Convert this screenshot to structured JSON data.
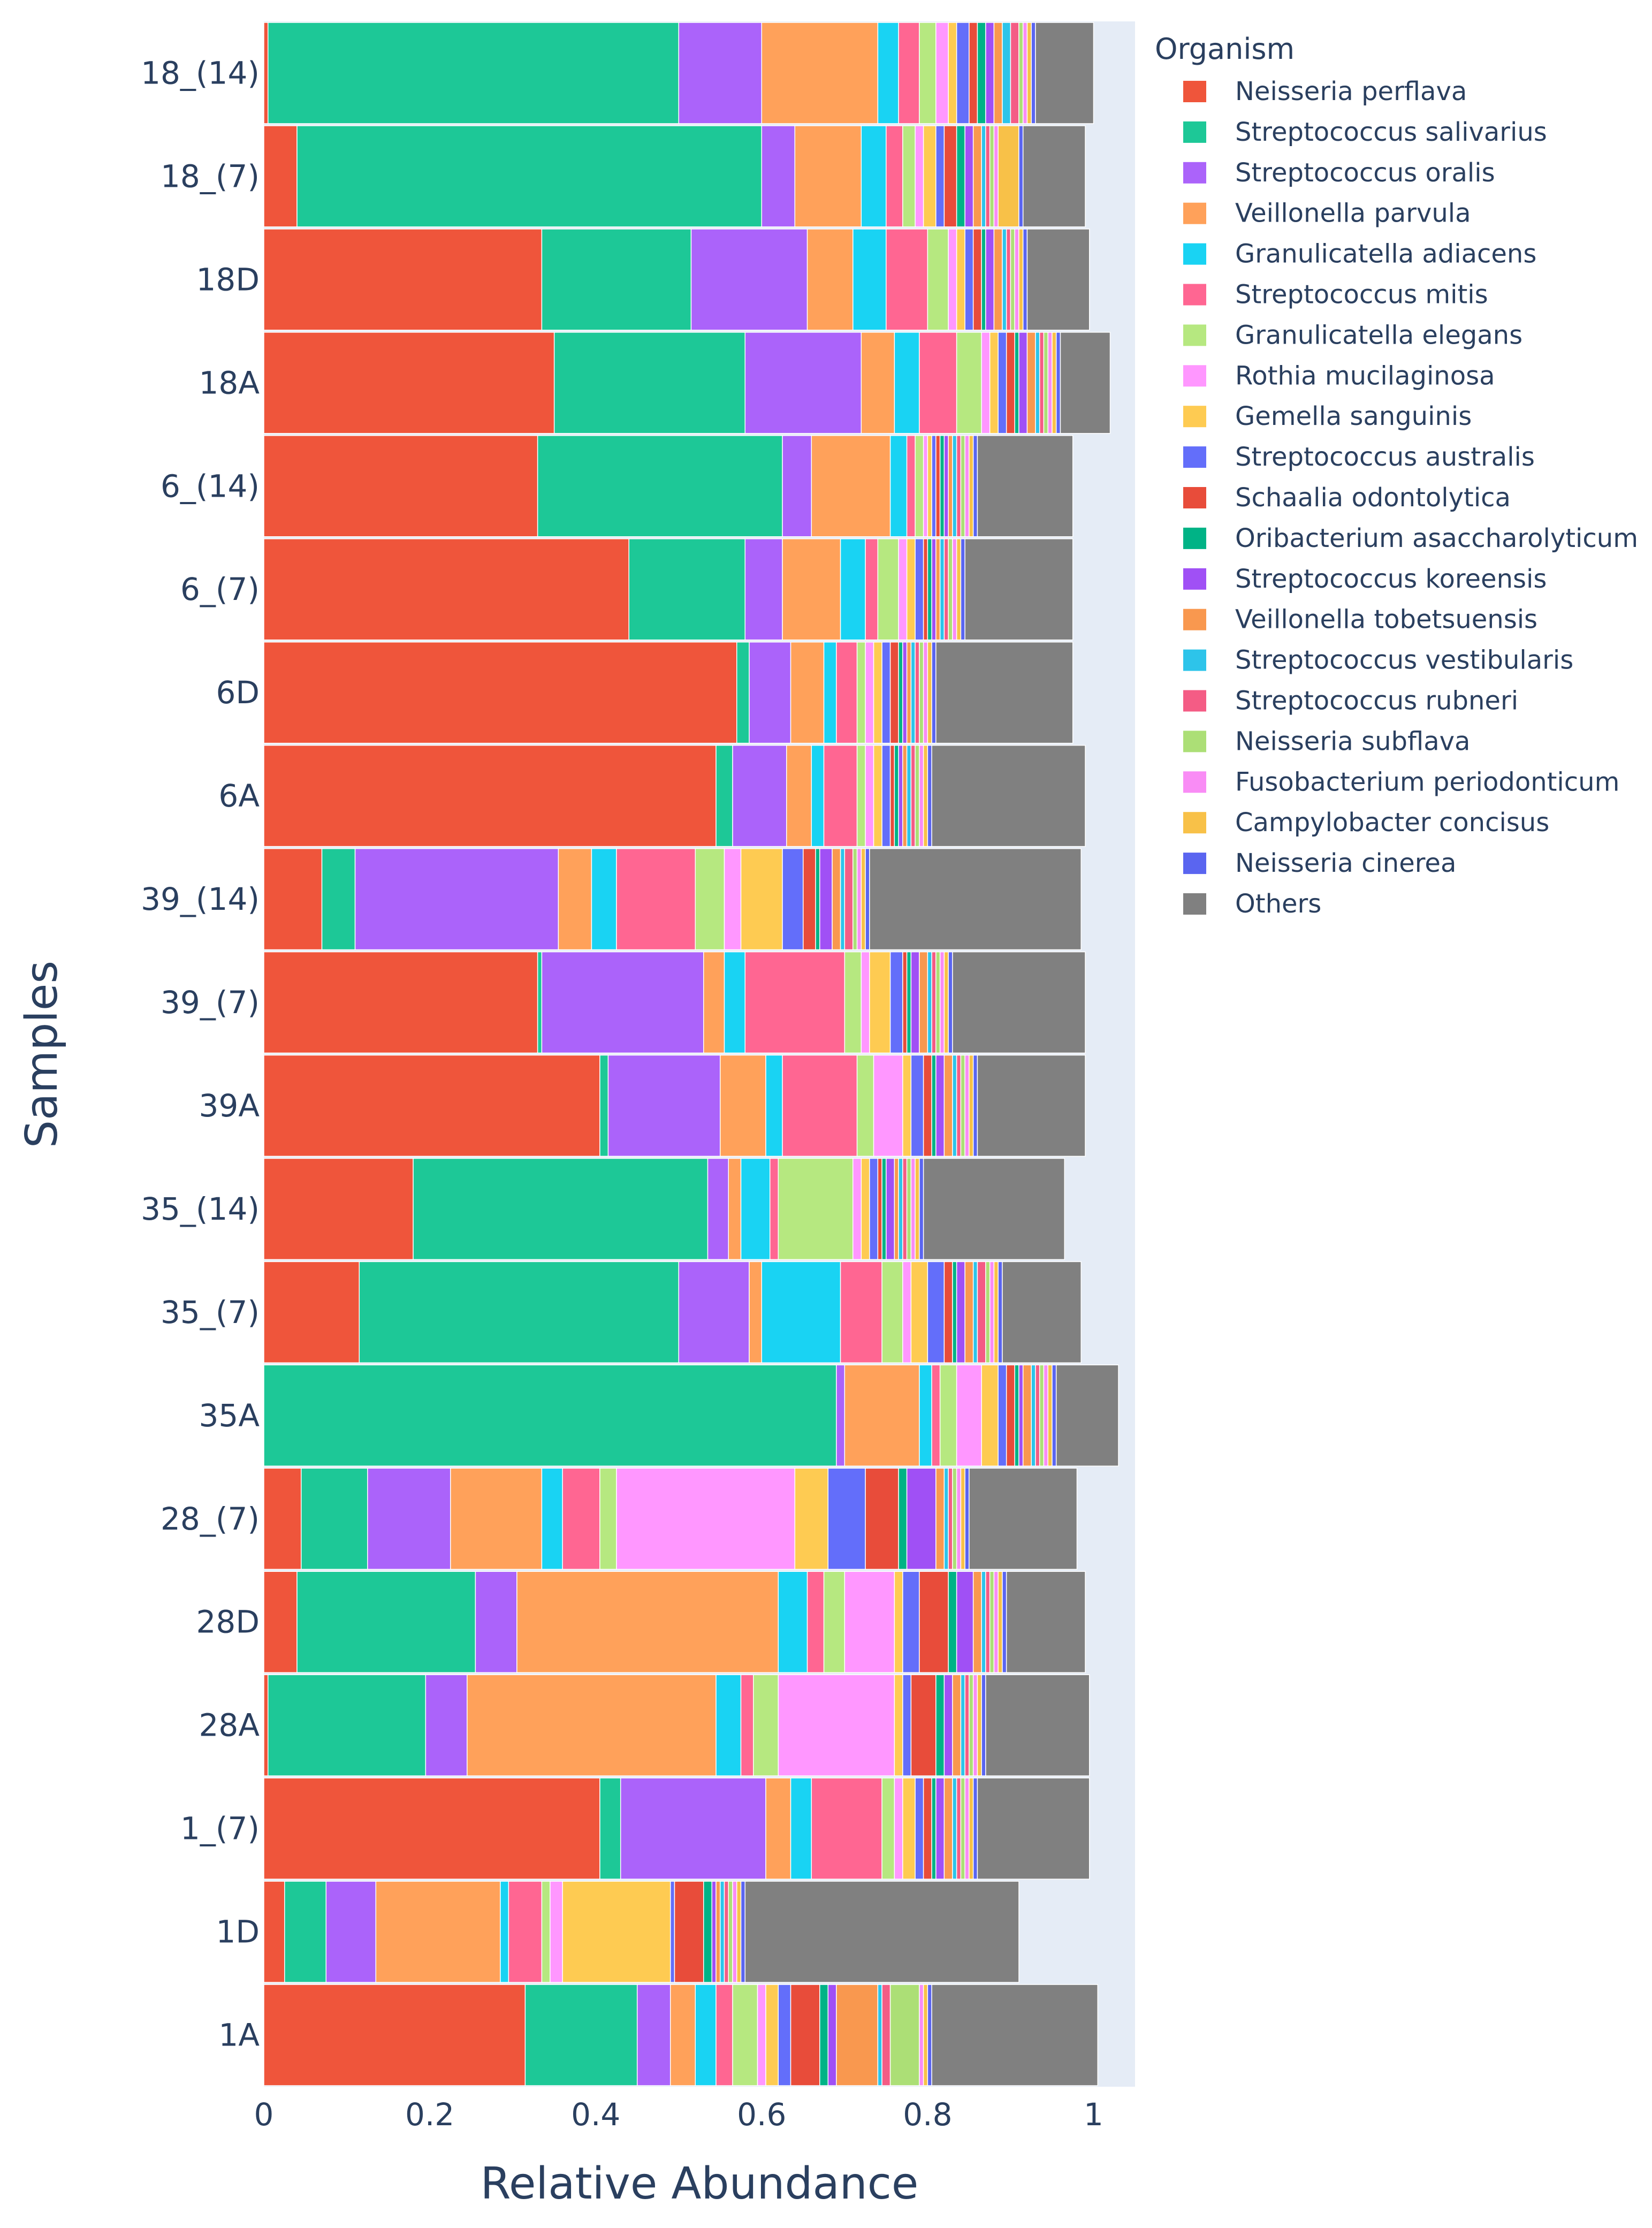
{
  "chart_data": {
    "type": "bar",
    "orientation": "horizontal",
    "barmode": "stack",
    "xlabel": "Relative Abundance",
    "ylabel": "Samples",
    "xlim": [
      0,
      1.05
    ],
    "xticks": [
      0,
      0.2,
      0.4,
      0.6,
      0.8,
      1
    ],
    "xtick_labels": [
      "0",
      "0.2",
      "0.4",
      "0.6",
      "0.8",
      "1"
    ],
    "legend_title": "Organism",
    "legend_position": "top-right",
    "categories": [
      "18_(14)",
      "18_(7)",
      "18D",
      "18A",
      "6_(14)",
      "6_(7)",
      "6D",
      "6A",
      "39_(14)",
      "39_(7)",
      "39A",
      "35_(14)",
      "35_(7)",
      "35A",
      "28_(7)",
      "28D",
      "28A",
      "1_(7)",
      "1D",
      "1A"
    ],
    "series": [
      {
        "name": "Neisseria perflava",
        "color": "#EF553B",
        "values": [
          0.005,
          0.04,
          0.335,
          0.35,
          0.33,
          0.44,
          0.57,
          0.545,
          0.07,
          0.33,
          0.405,
          0.18,
          0.115,
          0.0,
          0.045,
          0.04,
          0.005,
          0.405,
          0.025,
          0.315
        ]
      },
      {
        "name": "Streptococcus salivarius",
        "color": "#1DC897",
        "values": [
          0.495,
          0.56,
          0.18,
          0.23,
          0.295,
          0.14,
          0.015,
          0.02,
          0.04,
          0.005,
          0.01,
          0.355,
          0.385,
          0.69,
          0.08,
          0.215,
          0.19,
          0.025,
          0.05,
          0.135
        ]
      },
      {
        "name": "Streptococcus oralis",
        "color": "#AB63FA",
        "values": [
          0.1,
          0.04,
          0.14,
          0.14,
          0.035,
          0.045,
          0.05,
          0.065,
          0.245,
          0.195,
          0.135,
          0.025,
          0.085,
          0.01,
          0.1,
          0.05,
          0.05,
          0.175,
          0.06,
          0.04
        ]
      },
      {
        "name": "Veillonella parvula",
        "color": "#FFA15A",
        "values": [
          0.14,
          0.08,
          0.055,
          0.04,
          0.095,
          0.07,
          0.04,
          0.03,
          0.04,
          0.025,
          0.055,
          0.015,
          0.015,
          0.09,
          0.11,
          0.315,
          0.3,
          0.03,
          0.15,
          0.03
        ]
      },
      {
        "name": "Granulicatella adiacens",
        "color": "#19D3F3",
        "values": [
          0.025,
          0.03,
          0.04,
          0.03,
          0.02,
          0.03,
          0.015,
          0.015,
          0.03,
          0.025,
          0.02,
          0.035,
          0.095,
          0.015,
          0.025,
          0.035,
          0.03,
          0.025,
          0.01,
          0.025
        ]
      },
      {
        "name": "Streptococcus mitis",
        "color": "#FF6692",
        "values": [
          0.025,
          0.02,
          0.05,
          0.045,
          0.01,
          0.015,
          0.025,
          0.04,
          0.095,
          0.12,
          0.09,
          0.01,
          0.05,
          0.01,
          0.045,
          0.02,
          0.015,
          0.085,
          0.04,
          0.02
        ]
      },
      {
        "name": "Granulicatella elegans",
        "color": "#B6E880",
        "values": [
          0.02,
          0.015,
          0.025,
          0.03,
          0.01,
          0.025,
          0.01,
          0.01,
          0.035,
          0.02,
          0.02,
          0.09,
          0.025,
          0.02,
          0.02,
          0.025,
          0.03,
          0.015,
          0.01,
          0.03
        ]
      },
      {
        "name": "Rothia mucilaginosa",
        "color": "#FF97FF",
        "values": [
          0.015,
          0.01,
          0.01,
          0.01,
          0.005,
          0.01,
          0.01,
          0.01,
          0.02,
          0.01,
          0.035,
          0.01,
          0.01,
          0.03,
          0.215,
          0.06,
          0.14,
          0.01,
          0.015,
          0.01
        ]
      },
      {
        "name": "Gemella sanguinis",
        "color": "#FECB52",
        "values": [
          0.01,
          0.015,
          0.01,
          0.01,
          0.005,
          0.01,
          0.01,
          0.01,
          0.05,
          0.025,
          0.01,
          0.01,
          0.02,
          0.02,
          0.04,
          0.01,
          0.01,
          0.015,
          0.13,
          0.015
        ]
      },
      {
        "name": "Streptococcus australis",
        "color": "#636EFA",
        "values": [
          0.015,
          0.01,
          0.01,
          0.01,
          0.005,
          0.01,
          0.01,
          0.01,
          0.025,
          0.015,
          0.015,
          0.01,
          0.02,
          0.01,
          0.045,
          0.02,
          0.01,
          0.01,
          0.005,
          0.015
        ]
      },
      {
        "name": "Schaalia odontolytica",
        "color": "#E84C3A",
        "values": [
          0.01,
          0.015,
          0.01,
          0.01,
          0.005,
          0.005,
          0.01,
          0.005,
          0.015,
          0.005,
          0.01,
          0.005,
          0.01,
          0.01,
          0.04,
          0.035,
          0.03,
          0.01,
          0.035,
          0.035
        ]
      },
      {
        "name": "Oribacterium asaccharolyticum",
        "color": "#00B386",
        "values": [
          0.01,
          0.01,
          0.005,
          0.005,
          0.005,
          0.005,
          0.005,
          0.005,
          0.005,
          0.005,
          0.005,
          0.005,
          0.005,
          0.005,
          0.01,
          0.01,
          0.01,
          0.005,
          0.01,
          0.01
        ]
      },
      {
        "name": "Streptococcus koreensis",
        "color": "#A050F5",
        "values": [
          0.01,
          0.01,
          0.01,
          0.01,
          0.005,
          0.005,
          0.005,
          0.005,
          0.015,
          0.01,
          0.01,
          0.01,
          0.01,
          0.005,
          0.035,
          0.02,
          0.01,
          0.01,
          0.005,
          0.01
        ]
      },
      {
        "name": "Veillonella tobetsuensis",
        "color": "#F9984F",
        "values": [
          0.01,
          0.01,
          0.01,
          0.01,
          0.005,
          0.005,
          0.005,
          0.005,
          0.01,
          0.01,
          0.01,
          0.005,
          0.01,
          0.01,
          0.01,
          0.01,
          0.01,
          0.01,
          0.005,
          0.05
        ]
      },
      {
        "name": "Streptococcus vestibularis",
        "color": "#2DC4EA",
        "values": [
          0.01,
          0.005,
          0.005,
          0.005,
          0.005,
          0.005,
          0.005,
          0.005,
          0.005,
          0.005,
          0.005,
          0.005,
          0.005,
          0.005,
          0.005,
          0.005,
          0.005,
          0.005,
          0.005,
          0.005
        ]
      },
      {
        "name": "Streptococcus rubneri",
        "color": "#F45C85",
        "values": [
          0.01,
          0.005,
          0.005,
          0.005,
          0.005,
          0.005,
          0.005,
          0.005,
          0.01,
          0.005,
          0.005,
          0.005,
          0.01,
          0.005,
          0.005,
          0.005,
          0.005,
          0.005,
          0.005,
          0.01
        ]
      },
      {
        "name": "Neisseria subflava",
        "color": "#ACDF76",
        "values": [
          0.005,
          0.005,
          0.005,
          0.005,
          0.005,
          0.005,
          0.005,
          0.005,
          0.005,
          0.005,
          0.005,
          0.005,
          0.005,
          0.005,
          0.005,
          0.005,
          0.005,
          0.005,
          0.005,
          0.035
        ]
      },
      {
        "name": "Fusobacterium periodonticum",
        "color": "#F98CF5",
        "values": [
          0.005,
          0.005,
          0.005,
          0.005,
          0.005,
          0.005,
          0.005,
          0.005,
          0.005,
          0.005,
          0.005,
          0.005,
          0.005,
          0.005,
          0.005,
          0.005,
          0.005,
          0.005,
          0.005,
          0.005
        ]
      },
      {
        "name": "Campylobacter concisus",
        "color": "#F8C148",
        "values": [
          0.005,
          0.025,
          0.005,
          0.005,
          0.005,
          0.005,
          0.005,
          0.005,
          0.005,
          0.005,
          0.005,
          0.005,
          0.005,
          0.005,
          0.005,
          0.005,
          0.005,
          0.005,
          0.005,
          0.005
        ]
      },
      {
        "name": "Neisseria cinerea",
        "color": "#5A65F0",
        "values": [
          0.005,
          0.005,
          0.005,
          0.005,
          0.005,
          0.005,
          0.005,
          0.005,
          0.005,
          0.005,
          0.005,
          0.005,
          0.005,
          0.005,
          0.005,
          0.005,
          0.005,
          0.005,
          0.005,
          0.005
        ]
      },
      {
        "name": "Others",
        "color": "#808080",
        "values": [
          0.07,
          0.075,
          0.075,
          0.06,
          0.115,
          0.13,
          0.165,
          0.185,
          0.255,
          0.16,
          0.13,
          0.17,
          0.095,
          0.075,
          0.13,
          0.095,
          0.125,
          0.135,
          0.33,
          0.2
        ]
      }
    ]
  }
}
